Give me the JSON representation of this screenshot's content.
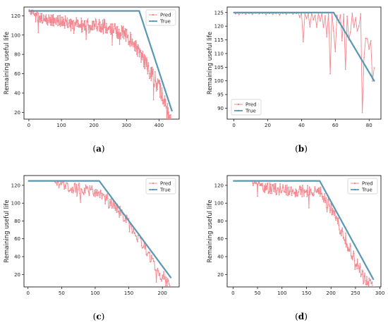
{
  "colors": {
    "pred": "#f4878f",
    "true": "#5b97b3"
  },
  "legend": {
    "pred": "Pred",
    "true": "True"
  },
  "chart_data": [
    {
      "id": "a",
      "type": "line",
      "caption": [
        "(",
        "a",
        ")"
      ],
      "ylabel": "Remaining useful life",
      "xlim": [
        -15,
        462
      ],
      "ylim": [
        13,
        129
      ],
      "xticks": [
        0,
        100,
        200,
        300,
        400
      ],
      "yticks": [
        20,
        40,
        60,
        80,
        100,
        120
      ],
      "legend_position": "upper right",
      "series": [
        {
          "name": "Pred",
          "key": "pred",
          "x_range": [
            0,
            440
          ],
          "gen": {
            "seed": 11,
            "n": 440,
            "cap": 125,
            "breakpoints": [
              [
                0,
                126
              ],
              [
                60,
                121
              ],
              [
                150,
                118
              ],
              [
                230,
                116
              ],
              [
                300,
                108
              ],
              [
                340,
                90
              ],
              [
                400,
                55
              ],
              [
                440,
                15
              ]
            ],
            "noise_lo": 12,
            "noise_hi": 12,
            "spike_p": 0.06,
            "spike": 18
          }
        },
        {
          "name": "True",
          "key": "true",
          "x": [
            0,
            339,
            440
          ],
          "y": [
            125,
            125,
            21
          ]
        }
      ]
    },
    {
      "id": "b",
      "type": "line",
      "caption": [
        "(",
        "b",
        ")"
      ],
      "ylabel": "Remaining useful life",
      "xlim": [
        -4,
        87
      ],
      "ylim": [
        86,
        127
      ],
      "xticks": [
        0,
        20,
        40,
        60,
        80
      ],
      "yticks": [
        90,
        95,
        100,
        105,
        110,
        115,
        120,
        125
      ],
      "legend_position": "lower left",
      "series": [
        {
          "name": "Pred",
          "key": "pred",
          "x_range": [
            0,
            83
          ],
          "points": [
            [
              0,
              125
            ],
            [
              1,
              124.5
            ],
            [
              2,
              125
            ],
            [
              3,
              124.2
            ],
            [
              4,
              125
            ],
            [
              5,
              124.6
            ],
            [
              6,
              125
            ],
            [
              7,
              124.4
            ],
            [
              8,
              125
            ],
            [
              9,
              124.6
            ],
            [
              10,
              124.9
            ],
            [
              11,
              124.3
            ],
            [
              12,
              125
            ],
            [
              13,
              124.7
            ],
            [
              14,
              125
            ],
            [
              15,
              124.5
            ],
            [
              16,
              125
            ],
            [
              17,
              124.6
            ],
            [
              18,
              125
            ],
            [
              19,
              124.2
            ],
            [
              20,
              125
            ],
            [
              21,
              124.6
            ],
            [
              22,
              125
            ],
            [
              23,
              124.3
            ],
            [
              24,
              125
            ],
            [
              25,
              124.6
            ],
            [
              26,
              125
            ],
            [
              27,
              124.1
            ],
            [
              28,
              124.9
            ],
            [
              29,
              124.6
            ],
            [
              30,
              125
            ],
            [
              31,
              124.3
            ],
            [
              32,
              125
            ],
            [
              33,
              124.7
            ],
            [
              34,
              124.9
            ],
            [
              35,
              124.4
            ],
            [
              36,
              125
            ],
            [
              37,
              124.6
            ],
            [
              38,
              125
            ],
            [
              39,
              123.2
            ],
            [
              40,
              125
            ],
            [
              41,
              114.3
            ],
            [
              42,
              124.6
            ],
            [
              43,
              122.8
            ],
            [
              44,
              124.5
            ],
            [
              45,
              119.7
            ],
            [
              46,
              125
            ],
            [
              47,
              122.3
            ],
            [
              48,
              124
            ],
            [
              49,
              119.6
            ],
            [
              50,
              124.8
            ],
            [
              51,
              121.9
            ],
            [
              52,
              124.5
            ],
            [
              53,
              119.6
            ],
            [
              54,
              123.8
            ],
            [
              55,
              116.1
            ],
            [
              56,
              125
            ],
            [
              57,
              102.6
            ],
            [
              58,
              124.9
            ],
            [
              59,
              118.2
            ],
            [
              60,
              110.7
            ],
            [
              61,
              124
            ],
            [
              62,
              121.3
            ],
            [
              63,
              124.1
            ],
            [
              64,
              114.7
            ],
            [
              65,
              124.4
            ],
            [
              66,
              104.2
            ],
            [
              67,
              123.6
            ],
            [
              68,
              115
            ],
            [
              69,
              117.9
            ],
            [
              70,
              124.7
            ],
            [
              71,
              119.6
            ],
            [
              72,
              123.1
            ],
            [
              73,
              118.2
            ],
            [
              74,
              120.1
            ],
            [
              75,
              124.5
            ],
            [
              76,
              88.4
            ],
            [
              77,
              108.6
            ],
            [
              78,
              115.6
            ],
            [
              79,
              115.4
            ],
            [
              80,
              111.6
            ],
            [
              81,
              114.7
            ],
            [
              82,
              99.9
            ],
            [
              83,
              104.8
            ]
          ]
        },
        {
          "name": "True",
          "key": "true",
          "x": [
            0,
            59,
            83
          ],
          "y": [
            125,
            125,
            100
          ],
          "markers": true
        }
      ]
    },
    {
      "id": "c",
      "type": "line",
      "caption": [
        "(",
        "c",
        ")"
      ],
      "ylabel": "Remaining useful life",
      "xlim": [
        -6,
        225
      ],
      "ylim": [
        6,
        131
      ],
      "xticks": [
        0,
        50,
        100,
        150,
        200
      ],
      "yticks": [
        20,
        40,
        60,
        80,
        100,
        120
      ],
      "legend_position": "upper right",
      "series": [
        {
          "name": "Pred",
          "key": "pred",
          "x_range": [
            40,
            213
          ],
          "gen": {
            "seed": 23,
            "n": 173,
            "cap": 125,
            "breakpoints": [
              [
                40,
                125
              ],
              [
                80,
                122
              ],
              [
                105,
                118
              ],
              [
                140,
                95
              ],
              [
                170,
                60
              ],
              [
                213,
                10
              ]
            ],
            "noise_lo": 14,
            "noise_hi": 8,
            "spike_p": 0.05,
            "spike": 14
          }
        },
        {
          "name": "True",
          "key": "true",
          "x": [
            0,
            106,
            213
          ],
          "y": [
            125,
            125,
            16
          ]
        }
      ]
    },
    {
      "id": "d",
      "type": "line",
      "caption": [
        "(",
        "d",
        ")"
      ],
      "ylabel": "Remaining useful life",
      "xlim": [
        -12,
        302
      ],
      "ylim": [
        6,
        131
      ],
      "xticks": [
        0,
        50,
        100,
        150,
        200,
        250,
        300
      ],
      "yticks": [
        20,
        40,
        60,
        80,
        100,
        120
      ],
      "legend_position": "upper right",
      "series": [
        {
          "name": "Pred",
          "key": "pred",
          "x_range": [
            40,
            287
          ],
          "gen": {
            "seed": 37,
            "n": 247,
            "cap": 125,
            "breakpoints": [
              [
                40,
                125
              ],
              [
                100,
                121
              ],
              [
                180,
                120
              ],
              [
                205,
                95
              ],
              [
                235,
                60
              ],
              [
                265,
                25
              ],
              [
                287,
                12
              ]
            ],
            "noise_lo": 14,
            "noise_hi": 8,
            "spike_p": 0.06,
            "spike": 16
          }
        },
        {
          "name": "True",
          "key": "true",
          "x": [
            0,
            177,
            287
          ],
          "y": [
            125,
            125,
            14
          ]
        }
      ]
    }
  ]
}
